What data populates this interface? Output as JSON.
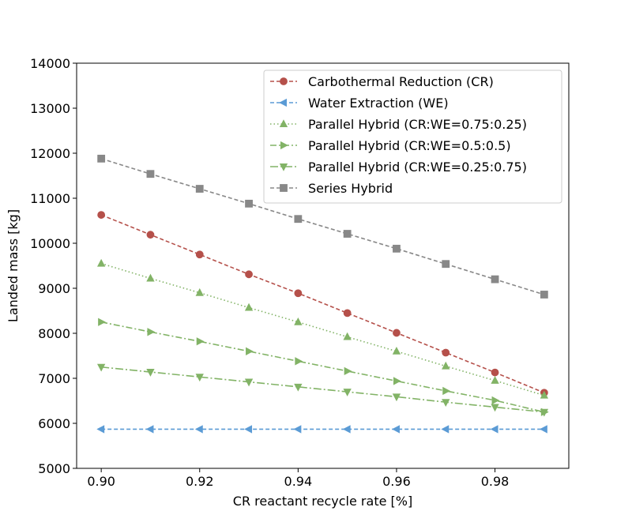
{
  "chart_data": {
    "type": "line",
    "title": "",
    "xlabel": "CR reactant recycle rate [%]",
    "ylabel": "Landed mass [kg]",
    "xlim": [
      0.895,
      0.995
    ],
    "ylim": [
      5000,
      14000
    ],
    "x_ticks": [
      "0.90",
      "0.92",
      "0.94",
      "0.96",
      "0.98"
    ],
    "y_ticks": [
      "5000",
      "6000",
      "7000",
      "8000",
      "9000",
      "10000",
      "11000",
      "12000",
      "13000",
      "14000"
    ],
    "grid": false,
    "legend_position": "top-right",
    "x": [
      0.9,
      0.91,
      0.92,
      0.93,
      0.94,
      0.95,
      0.96,
      0.97,
      0.98,
      0.99
    ],
    "series": [
      {
        "name": "Carbothermal Reduction (CR)",
        "color": "#b5504a",
        "marker": "circle",
        "dash": "dashed",
        "values": [
          10630,
          10190,
          9750,
          9310,
          8890,
          8450,
          8010,
          7570,
          7130,
          6680
        ]
      },
      {
        "name": "Water Extraction (WE)",
        "color": "#5b9bd5",
        "marker": "triangle-left",
        "dash": "dashed",
        "values": [
          5870,
          5870,
          5870,
          5870,
          5870,
          5870,
          5870,
          5870,
          5870,
          5870
        ]
      },
      {
        "name": "Parallel Hybrid (CR:WE=0.75:0.25)",
        "color": "#82b366",
        "marker": "triangle-up",
        "dash": "dotted",
        "values": [
          9550,
          9220,
          8900,
          8570,
          8250,
          7920,
          7600,
          7270,
          6950,
          6620
        ]
      },
      {
        "name": "Parallel Hybrid (CR:WE=0.5:0.5)",
        "color": "#82b366",
        "marker": "triangle-right",
        "dash": "dashdot",
        "values": [
          8250,
          8030,
          7820,
          7600,
          7380,
          7160,
          6940,
          6720,
          6510,
          6250
        ]
      },
      {
        "name": "Parallel Hybrid (CR:WE=0.25:0.75)",
        "color": "#82b366",
        "marker": "triangle-down",
        "dash": "dashdot2",
        "values": [
          7250,
          7140,
          7030,
          6920,
          6810,
          6700,
          6590,
          6470,
          6360,
          6250
        ]
      },
      {
        "name": "Series Hybrid",
        "color": "#888888",
        "marker": "square",
        "dash": "dashed",
        "values": [
          11880,
          11540,
          11210,
          10880,
          10540,
          10210,
          9880,
          9540,
          9200,
          8860
        ]
      }
    ]
  }
}
